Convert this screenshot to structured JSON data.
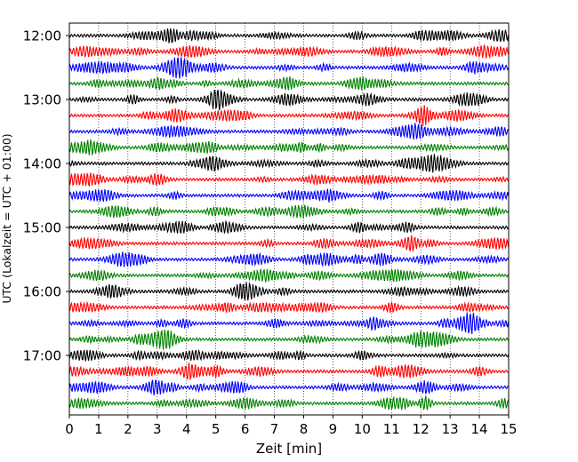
{
  "chart_data": {
    "type": "line",
    "title": "",
    "xlabel": "Zeit  [min]",
    "ylabel": "UTC (Lokalzeit = UTC + 01:00)",
    "xlim": [
      0,
      15
    ],
    "x_ticks": [
      "0",
      "1",
      "2",
      "3",
      "4",
      "5",
      "6",
      "7",
      "8",
      "9",
      "10",
      "11",
      "12",
      "13",
      "14",
      "15"
    ],
    "y_tick_labels": [
      "12:00",
      "13:00",
      "14:00",
      "15:00",
      "16:00",
      "17:00"
    ],
    "trace_start": "12:00",
    "trace_end": "17:45",
    "trace_interval_min": 15,
    "trace_colors": [
      "#000000",
      "#ff0000",
      "#0000ff",
      "#008000"
    ],
    "grid": "vertical-dotted"
  }
}
